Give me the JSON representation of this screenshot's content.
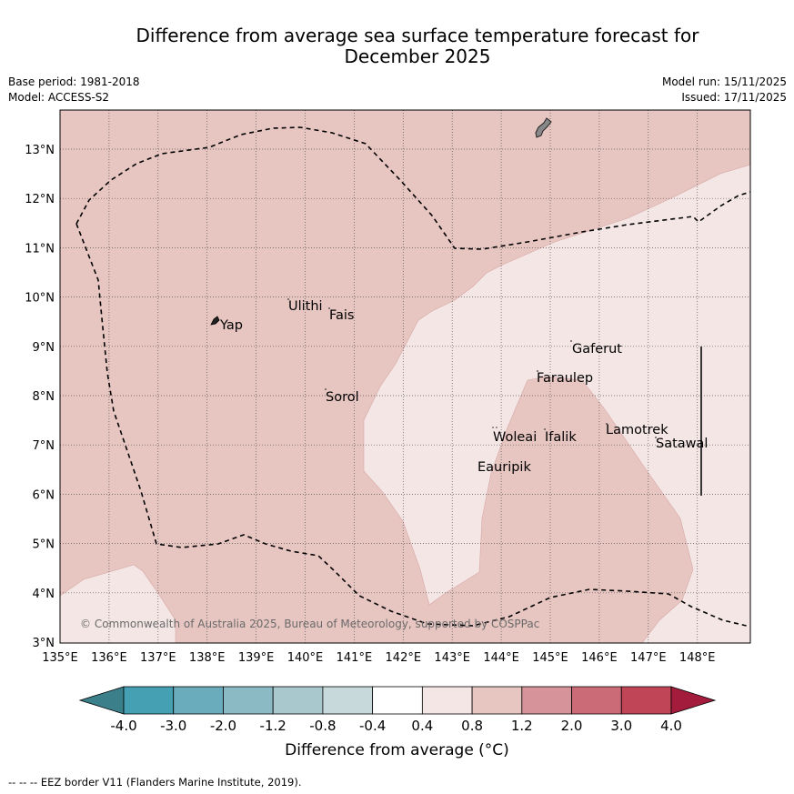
{
  "title_line1": "Difference from average sea surface temperature forecast for",
  "title_line2": "December 2025",
  "base_period": "Base period: 1981-2018",
  "model": "Model: ACCESS-S2",
  "model_run": "Model run: 15/11/2025",
  "issued": "Issued: 17/11/2025",
  "copyright": "© Commonwealth of Australia 2025, Bureau of Meteorology, supported by COSPPac",
  "lat_labels": [
    "3°N",
    "4°N",
    "5°N",
    "6°N",
    "7°N",
    "8°N",
    "9°N",
    "10°N",
    "11°N",
    "12°N",
    "13°N"
  ],
  "lon_labels": [
    "135°E",
    "136°E",
    "137°E",
    "138°E",
    "139°E",
    "140°E",
    "141°E",
    "142°E",
    "143°E",
    "144°E",
    "145°E",
    "146°E",
    "147°E",
    "148°E"
  ],
  "places": [
    {
      "name": "Yap"
    },
    {
      "name": "Ulithi"
    },
    {
      "name": "Fais"
    },
    {
      "name": "Gaferut"
    },
    {
      "name": "Faraulep"
    },
    {
      "name": "Sorol"
    },
    {
      "name": "Woleai"
    },
    {
      "name": "Ifalik"
    },
    {
      "name": "Lamotrek"
    },
    {
      "name": "Satawal"
    },
    {
      "name": "Eauripik"
    }
  ],
  "colorbar": {
    "ticks": [
      "-4.0",
      "-3.0",
      "-2.0",
      "-1.2",
      "-0.8",
      "-0.4",
      "0.4",
      "0.8",
      "1.2",
      "2.0",
      "3.0",
      "4.0"
    ],
    "colors": [
      "#3a7f8a",
      "#46a0b3",
      "#6aacbb",
      "#8bb9c4",
      "#a9c8ce",
      "#c8d9dc",
      "#ffffff",
      "#f4e6e5",
      "#e7c5c1",
      "#d6949a",
      "#cb6b77",
      "#bf4557",
      "#a31c3c"
    ],
    "title": "Difference from average (°C)"
  },
  "legend": {
    "eez": "--  --  -- EEZ border V11 (Flanders Marine Institute, 2019)."
  }
}
